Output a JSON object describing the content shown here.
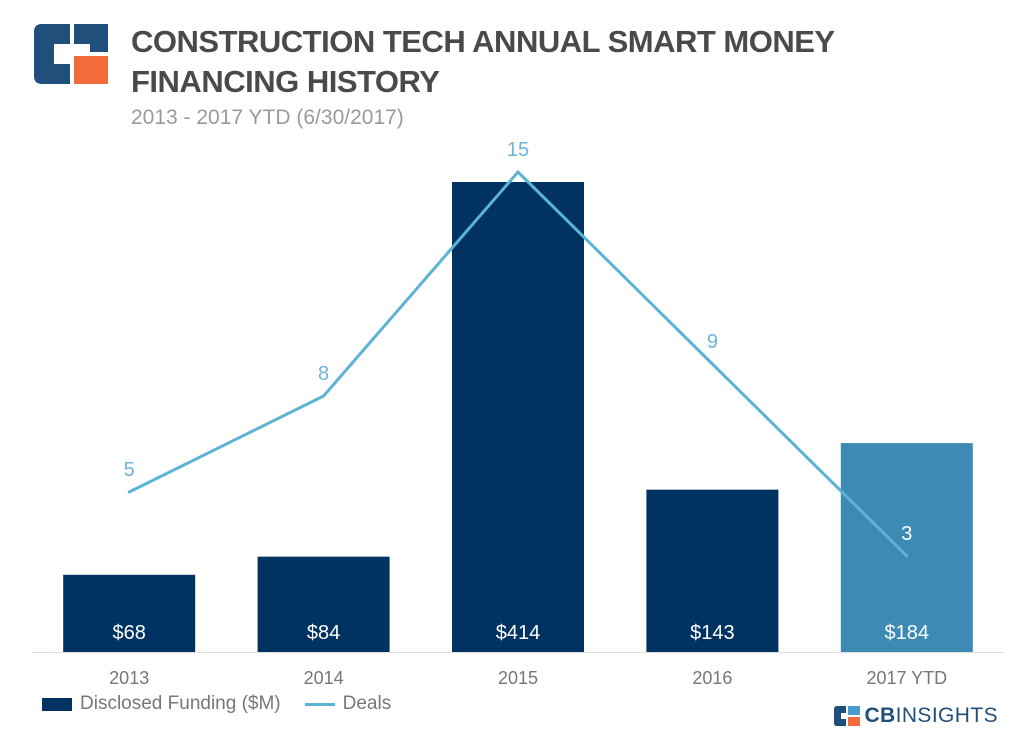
{
  "header": {
    "title": "CONSTRUCTION TECH ANNUAL SMART MONEY FINANCING HISTORY",
    "subtitle": "2013 - 2017 YTD (6/30/2017)"
  },
  "legend": {
    "bar_label": "Disclosed Funding ($M)",
    "line_label": "Deals"
  },
  "brand": {
    "prefix": "CB",
    "suffix": "INSIGHTS"
  },
  "colors": {
    "bar": "#003262",
    "bar_highlight": "#3d8ab4",
    "line": "#5bb3d6",
    "line_label": "#6bb5d8",
    "axis_label": "#777777",
    "logo_blue": "#1f4f7a",
    "logo_orange": "#f26b3a",
    "logo_light": "#4b9bd1"
  },
  "chart_data": {
    "type": "bar",
    "title": "CONSTRUCTION TECH ANNUAL SMART MONEY FINANCING HISTORY",
    "subtitle": "2013 - 2017 YTD (6/30/2017)",
    "categories": [
      "2013",
      "2014",
      "2015",
      "2016",
      "2017 YTD"
    ],
    "series": [
      {
        "name": "Disclosed Funding ($M)",
        "type": "bar",
        "values": [
          68,
          84,
          414,
          143,
          184
        ],
        "labels": [
          "$68",
          "$84",
          "$414",
          "$143",
          "$184"
        ]
      },
      {
        "name": "Deals",
        "type": "line",
        "values": [
          5,
          8,
          15,
          9,
          3
        ],
        "labels": [
          "5",
          "8",
          "15",
          "9",
          "3"
        ]
      }
    ],
    "xlabel": "",
    "ylabel": "",
    "grid": false,
    "legend_position": "bottom-left"
  }
}
